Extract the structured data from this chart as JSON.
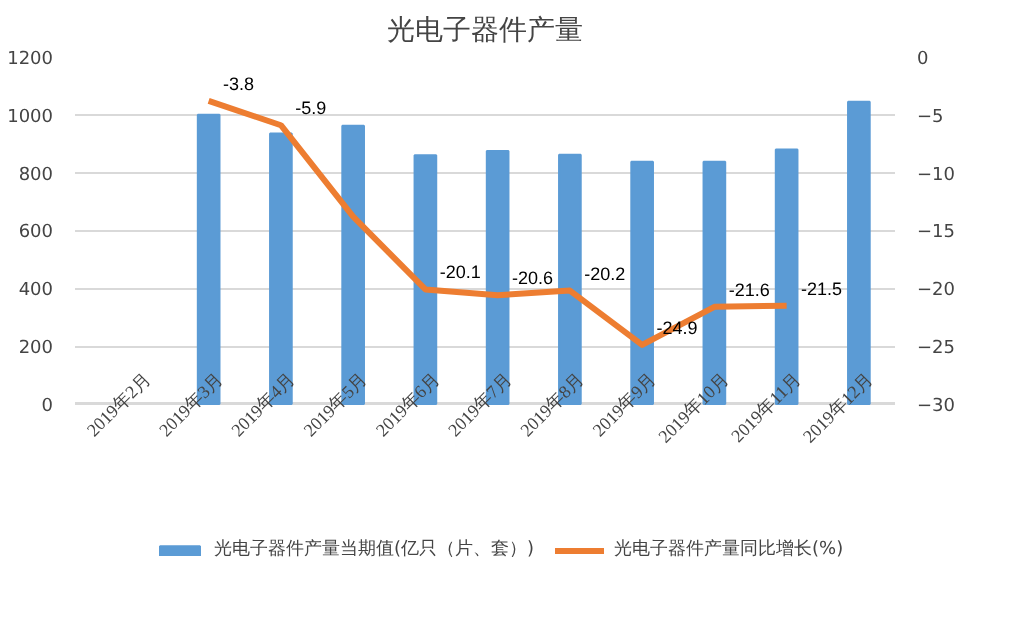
{
  "chart_data": {
    "type": "bar",
    "title": "光电子器件产量",
    "categories": [
      "2019年2月",
      "2019年3月",
      "2019年4月",
      "2019年5月",
      "2019年6月",
      "2019年7月",
      "2019年8月",
      "2019年9月",
      "2019年10月",
      "2019年11月",
      "2019年12月"
    ],
    "series": [
      {
        "name": "光电子器件产量当期值(亿只（片、套）)",
        "color": "#5b9bd5",
        "values": [
          null,
          1000,
          935,
          962,
          860,
          875,
          862,
          838,
          838,
          880,
          1045
        ]
      },
      {
        "name": "光电子器件产量同比增长(%)",
        "type": "line",
        "axis": "y2",
        "color": "#ed7d31",
        "values": [
          null,
          -3.8,
          -5.9,
          -13.8,
          -20.1,
          -20.6,
          -20.2,
          -24.9,
          -21.6,
          -21.5,
          null
        ],
        "value_labels": [
          null,
          "-3.8",
          "-5.9",
          null,
          "-20.1",
          "-20.6",
          "-20.2",
          "-24.9",
          "-21.6",
          "-21.5",
          null
        ]
      }
    ],
    "ylim": [
      0,
      1200
    ],
    "yticks": [
      0,
      200,
      400,
      600,
      800,
      1000,
      1200
    ],
    "y2lim": [
      -30,
      0
    ],
    "y2ticks": [
      -30,
      -25,
      -20,
      -15,
      -10,
      -5,
      0
    ],
    "grid": "y",
    "legend": "bottom"
  }
}
